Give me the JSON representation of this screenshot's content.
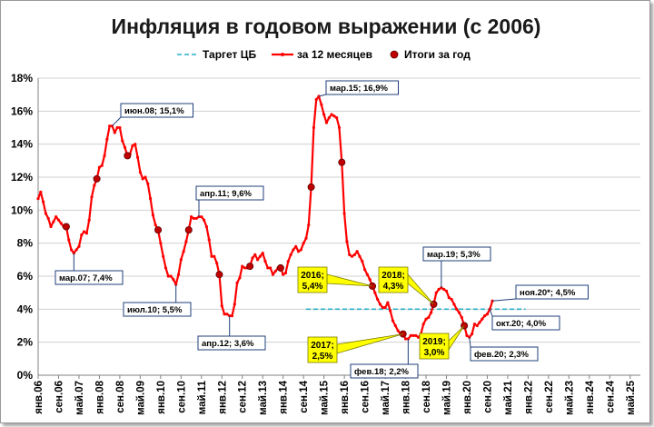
{
  "chart_data": {
    "type": "line",
    "title": "Инфляция в годовом выражении (с 2006)",
    "yticks": [
      "0%",
      "2%",
      "4%",
      "6%",
      "8%",
      "10%",
      "12%",
      "14%",
      "16%",
      "18%"
    ],
    "ylim": [
      0,
      18
    ],
    "grid": true,
    "legend_position": "top",
    "xlim": [
      "2006-01",
      "2025-09"
    ],
    "xticks": [
      {
        "date": "2006-01",
        "label": "янв.06"
      },
      {
        "date": "2006-09",
        "label": "сен.06"
      },
      {
        "date": "2007-05",
        "label": "май.07"
      },
      {
        "date": "2008-01",
        "label": "янв.08"
      },
      {
        "date": "2008-09",
        "label": "сен.08"
      },
      {
        "date": "2009-05",
        "label": "май.09"
      },
      {
        "date": "2010-01",
        "label": "янв.10"
      },
      {
        "date": "2010-09",
        "label": "сен.10"
      },
      {
        "date": "2011-05",
        "label": "май.11"
      },
      {
        "date": "2012-01",
        "label": "янв.12"
      },
      {
        "date": "2012-09",
        "label": "сен.12"
      },
      {
        "date": "2013-05",
        "label": "май.13"
      },
      {
        "date": "2014-01",
        "label": "янв.14"
      },
      {
        "date": "2014-09",
        "label": "сен.14"
      },
      {
        "date": "2015-05",
        "label": "май.15"
      },
      {
        "date": "2016-01",
        "label": "янв.16"
      },
      {
        "date": "2016-09",
        "label": "сен.16"
      },
      {
        "date": "2017-05",
        "label": "май.17"
      },
      {
        "date": "2018-01",
        "label": "янв.18"
      },
      {
        "date": "2018-09",
        "label": "сен.18"
      },
      {
        "date": "2019-05",
        "label": "май.19"
      },
      {
        "date": "2020-01",
        "label": "янв.20"
      },
      {
        "date": "2020-09",
        "label": "сен.20"
      },
      {
        "date": "2021-05",
        "label": "май.21"
      },
      {
        "date": "2022-01",
        "label": "янв.22"
      },
      {
        "date": "2022-09",
        "label": "сен.22"
      },
      {
        "date": "2023-05",
        "label": "май.23"
      },
      {
        "date": "2024-01",
        "label": "янв.24"
      },
      {
        "date": "2024-09",
        "label": "сен.24"
      },
      {
        "date": "2025-05",
        "label": "май.25"
      }
    ],
    "legend": [
      {
        "key": "target",
        "label": "Таргет ЦБ",
        "color": "#2ab0c8"
      },
      {
        "key": "monthly",
        "label": "за 12 месяцев",
        "color": "#ff0000"
      },
      {
        "key": "yearly",
        "label": "Итоги за год",
        "color": "#c00000"
      }
    ],
    "target": {
      "value": 4.0,
      "from": "2014-10",
      "to": "2021-12"
    },
    "series": [
      {
        "key": "monthly",
        "color": "#ff0000",
        "points": [
          [
            "2006-01",
            10.7
          ],
          [
            "2006-02",
            11.1
          ],
          [
            "2006-03",
            10.5
          ],
          [
            "2006-04",
            9.8
          ],
          [
            "2006-05",
            9.5
          ],
          [
            "2006-06",
            9.0
          ],
          [
            "2006-07",
            9.3
          ],
          [
            "2006-08",
            9.6
          ],
          [
            "2006-09",
            9.4
          ],
          [
            "2006-10",
            9.2
          ],
          [
            "2006-11",
            9.0
          ],
          [
            "2006-12",
            9.0
          ],
          [
            "2007-01",
            8.2
          ],
          [
            "2007-02",
            7.6
          ],
          [
            "2007-03",
            7.4
          ],
          [
            "2007-04",
            7.6
          ],
          [
            "2007-05",
            7.8
          ],
          [
            "2007-06",
            8.5
          ],
          [
            "2007-07",
            8.7
          ],
          [
            "2007-08",
            8.6
          ],
          [
            "2007-09",
            9.4
          ],
          [
            "2007-10",
            10.8
          ],
          [
            "2007-11",
            11.5
          ],
          [
            "2007-12",
            11.9
          ],
          [
            "2008-01",
            12.6
          ],
          [
            "2008-02",
            12.7
          ],
          [
            "2008-03",
            13.3
          ],
          [
            "2008-04",
            14.3
          ],
          [
            "2008-05",
            15.1
          ],
          [
            "2008-06",
            15.1
          ],
          [
            "2008-07",
            14.7
          ],
          [
            "2008-08",
            15.0
          ],
          [
            "2008-09",
            15.0
          ],
          [
            "2008-10",
            14.2
          ],
          [
            "2008-11",
            13.8
          ],
          [
            "2008-12",
            13.3
          ],
          [
            "2009-01",
            13.4
          ],
          [
            "2009-02",
            13.9
          ],
          [
            "2009-03",
            14.0
          ],
          [
            "2009-04",
            13.2
          ],
          [
            "2009-05",
            12.3
          ],
          [
            "2009-06",
            11.9
          ],
          [
            "2009-07",
            12.0
          ],
          [
            "2009-08",
            11.6
          ],
          [
            "2009-09",
            10.7
          ],
          [
            "2009-10",
            9.7
          ],
          [
            "2009-11",
            9.1
          ],
          [
            "2009-12",
            8.8
          ],
          [
            "2010-01",
            8.0
          ],
          [
            "2010-02",
            7.2
          ],
          [
            "2010-03",
            6.5
          ],
          [
            "2010-04",
            6.0
          ],
          [
            "2010-05",
            6.0
          ],
          [
            "2010-06",
            5.8
          ],
          [
            "2010-07",
            5.5
          ],
          [
            "2010-08",
            6.1
          ],
          [
            "2010-09",
            7.0
          ],
          [
            "2010-10",
            7.5
          ],
          [
            "2010-11",
            8.1
          ],
          [
            "2010-12",
            8.8
          ],
          [
            "2011-01",
            9.6
          ],
          [
            "2011-02",
            9.5
          ],
          [
            "2011-03",
            9.5
          ],
          [
            "2011-04",
            9.6
          ],
          [
            "2011-05",
            9.6
          ],
          [
            "2011-06",
            9.4
          ],
          [
            "2011-07",
            9.0
          ],
          [
            "2011-08",
            8.2
          ],
          [
            "2011-09",
            7.2
          ],
          [
            "2011-10",
            7.2
          ],
          [
            "2011-11",
            6.8
          ],
          [
            "2011-12",
            6.1
          ],
          [
            "2012-01",
            4.2
          ],
          [
            "2012-02",
            3.7
          ],
          [
            "2012-03",
            3.7
          ],
          [
            "2012-04",
            3.6
          ],
          [
            "2012-05",
            3.6
          ],
          [
            "2012-06",
            4.3
          ],
          [
            "2012-07",
            5.6
          ],
          [
            "2012-08",
            5.9
          ],
          [
            "2012-09",
            6.6
          ],
          [
            "2012-10",
            6.5
          ],
          [
            "2012-11",
            6.5
          ],
          [
            "2012-12",
            6.6
          ],
          [
            "2013-01",
            7.1
          ],
          [
            "2013-02",
            7.3
          ],
          [
            "2013-03",
            7.0
          ],
          [
            "2013-04",
            7.2
          ],
          [
            "2013-05",
            7.4
          ],
          [
            "2013-06",
            6.9
          ],
          [
            "2013-07",
            6.5
          ],
          [
            "2013-08",
            6.5
          ],
          [
            "2013-09",
            6.1
          ],
          [
            "2013-10",
            6.3
          ],
          [
            "2013-11",
            6.5
          ],
          [
            "2013-12",
            6.5
          ],
          [
            "2014-01",
            6.1
          ],
          [
            "2014-02",
            6.2
          ],
          [
            "2014-03",
            6.9
          ],
          [
            "2014-04",
            7.3
          ],
          [
            "2014-05",
            7.6
          ],
          [
            "2014-06",
            7.8
          ],
          [
            "2014-07",
            7.5
          ],
          [
            "2014-08",
            7.6
          ],
          [
            "2014-09",
            8.0
          ],
          [
            "2014-10",
            8.3
          ],
          [
            "2014-11",
            9.1
          ],
          [
            "2014-12",
            11.4
          ],
          [
            "2015-01",
            15.0
          ],
          [
            "2015-02",
            16.7
          ],
          [
            "2015-03",
            16.9
          ],
          [
            "2015-04",
            16.4
          ],
          [
            "2015-05",
            15.8
          ],
          [
            "2015-06",
            15.3
          ],
          [
            "2015-07",
            15.6
          ],
          [
            "2015-08",
            15.8
          ],
          [
            "2015-09",
            15.7
          ],
          [
            "2015-10",
            15.6
          ],
          [
            "2015-11",
            15.0
          ],
          [
            "2015-12",
            12.9
          ],
          [
            "2016-01",
            9.8
          ],
          [
            "2016-02",
            8.1
          ],
          [
            "2016-03",
            7.3
          ],
          [
            "2016-04",
            7.2
          ],
          [
            "2016-05",
            7.3
          ],
          [
            "2016-06",
            7.5
          ],
          [
            "2016-07",
            7.2
          ],
          [
            "2016-08",
            6.9
          ],
          [
            "2016-09",
            6.4
          ],
          [
            "2016-10",
            6.1
          ],
          [
            "2016-11",
            5.8
          ],
          [
            "2016-12",
            5.4
          ],
          [
            "2017-01",
            5.0
          ],
          [
            "2017-02",
            4.6
          ],
          [
            "2017-03",
            4.3
          ],
          [
            "2017-04",
            4.1
          ],
          [
            "2017-05",
            4.1
          ],
          [
            "2017-06",
            4.4
          ],
          [
            "2017-07",
            3.9
          ],
          [
            "2017-08",
            3.3
          ],
          [
            "2017-09",
            3.0
          ],
          [
            "2017-10",
            2.7
          ],
          [
            "2017-11",
            2.5
          ],
          [
            "2017-12",
            2.5
          ],
          [
            "2018-01",
            2.2
          ],
          [
            "2018-02",
            2.2
          ],
          [
            "2018-03",
            2.4
          ],
          [
            "2018-04",
            2.4
          ],
          [
            "2018-05",
            2.4
          ],
          [
            "2018-06",
            2.3
          ],
          [
            "2018-07",
            2.5
          ],
          [
            "2018-08",
            3.1
          ],
          [
            "2018-09",
            3.4
          ],
          [
            "2018-10",
            3.5
          ],
          [
            "2018-11",
            3.8
          ],
          [
            "2018-12",
            4.3
          ],
          [
            "2019-01",
            5.0
          ],
          [
            "2019-02",
            5.2
          ],
          [
            "2019-03",
            5.3
          ],
          [
            "2019-04",
            5.2
          ],
          [
            "2019-05",
            5.1
          ],
          [
            "2019-06",
            4.7
          ],
          [
            "2019-07",
            4.6
          ],
          [
            "2019-08",
            4.3
          ],
          [
            "2019-09",
            4.0
          ],
          [
            "2019-10",
            3.8
          ],
          [
            "2019-11",
            3.5
          ],
          [
            "2019-12",
            3.0
          ],
          [
            "2020-01",
            2.4
          ],
          [
            "2020-02",
            2.3
          ],
          [
            "2020-03",
            2.5
          ],
          [
            "2020-04",
            3.1
          ],
          [
            "2020-05",
            3.0
          ],
          [
            "2020-06",
            3.2
          ],
          [
            "2020-07",
            3.4
          ],
          [
            "2020-08",
            3.6
          ],
          [
            "2020-09",
            3.7
          ],
          [
            "2020-10",
            4.0
          ],
          [
            "2020-11",
            4.5
          ]
        ]
      },
      {
        "key": "yearly",
        "color": "#c00000",
        "points": [
          [
            "2006-12",
            9.0
          ],
          [
            "2007-12",
            11.9
          ],
          [
            "2008-12",
            13.3
          ],
          [
            "2009-12",
            8.8
          ],
          [
            "2010-12",
            8.8
          ],
          [
            "2011-12",
            6.1
          ],
          [
            "2012-12",
            6.6
          ],
          [
            "2013-12",
            6.5
          ],
          [
            "2014-12",
            11.4
          ],
          [
            "2015-12",
            12.9
          ],
          [
            "2016-12",
            5.4
          ],
          [
            "2017-12",
            2.5
          ],
          [
            "2018-12",
            4.3
          ],
          [
            "2019-12",
            3.0
          ]
        ]
      }
    ],
    "annotations": [
      {
        "text": "июн.08; 15,1%",
        "date": "2008-06",
        "value": 15.1,
        "style": "box"
      },
      {
        "text": "мар.07; 7,4%",
        "date": "2007-03",
        "value": 7.4,
        "style": "box"
      },
      {
        "text": "апр.11; 9,6%",
        "date": "2011-04",
        "value": 9.6,
        "style": "box"
      },
      {
        "text": "июл.10; 5,5%",
        "date": "2010-07",
        "value": 5.5,
        "style": "box"
      },
      {
        "text": "апр.12; 3,6%",
        "date": "2012-04",
        "value": 3.6,
        "style": "box"
      },
      {
        "text": "мар.15; 16,9%",
        "date": "2015-03",
        "value": 16.9,
        "style": "box"
      },
      {
        "text": "фев.18; 2,2%",
        "date": "2018-02",
        "value": 2.2,
        "style": "box"
      },
      {
        "text": "мар.19; 5,3%",
        "date": "2019-03",
        "value": 5.3,
        "style": "box"
      },
      {
        "text": "фев.20; 2,3%",
        "date": "2020-02",
        "value": 2.3,
        "style": "box"
      },
      {
        "text": "окт.20; 4,0%",
        "date": "2020-10",
        "value": 4.0,
        "style": "box"
      },
      {
        "text": "ноя.20*; 4,5%",
        "date": "2020-11",
        "value": 4.5,
        "style": "box"
      },
      {
        "lines": [
          "2016;",
          "5,4%"
        ],
        "date": "2016-12",
        "value": 5.4,
        "style": "highlight"
      },
      {
        "lines": [
          "2017;",
          "2,5%"
        ],
        "date": "2017-12",
        "value": 2.5,
        "style": "highlight"
      },
      {
        "lines": [
          "2018;",
          "4,3%"
        ],
        "date": "2018-12",
        "value": 4.3,
        "style": "highlight"
      },
      {
        "lines": [
          "2019;",
          "3,0%"
        ],
        "date": "2019-12",
        "value": 3.0,
        "style": "highlight"
      }
    ]
  }
}
